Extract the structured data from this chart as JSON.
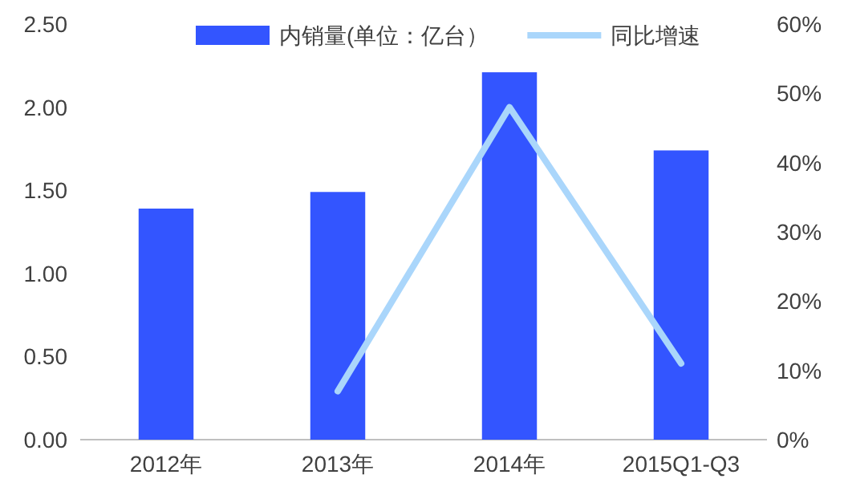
{
  "chart_data": {
    "type": "bar",
    "categories": [
      "2012年",
      "2013年",
      "2014年",
      "2015Q1-Q3"
    ],
    "series": [
      {
        "name": "内销量(单位：亿台）",
        "color": "#3355ff",
        "values": [
          1.39,
          1.49,
          2.21,
          1.74
        ]
      },
      {
        "name": "同比增速",
        "type": "line",
        "axis": "y2",
        "color": "#aad6fb",
        "values": [
          null,
          7,
          48,
          11
        ]
      }
    ],
    "ylim": [
      0,
      2.5
    ],
    "yticks": [
      {
        "value": 0,
        "label": "0.00"
      },
      {
        "value": 0.5,
        "label": "0.50"
      },
      {
        "value": 1,
        "label": "1.00"
      },
      {
        "value": 1.5,
        "label": "1.50"
      },
      {
        "value": 2,
        "label": "2.00"
      },
      {
        "value": 2.5,
        "label": "2.50"
      }
    ],
    "y2lim": [
      0,
      60
    ],
    "y2ticks": [
      {
        "value": 0,
        "label": "0%"
      },
      {
        "value": 10,
        "label": "10%"
      },
      {
        "value": 20,
        "label": "20%"
      },
      {
        "value": 30,
        "label": "30%"
      },
      {
        "value": 40,
        "label": "40%"
      },
      {
        "value": 50,
        "label": "50%"
      },
      {
        "value": 60,
        "label": "60%"
      }
    ],
    "legend": "top",
    "grid": false
  }
}
